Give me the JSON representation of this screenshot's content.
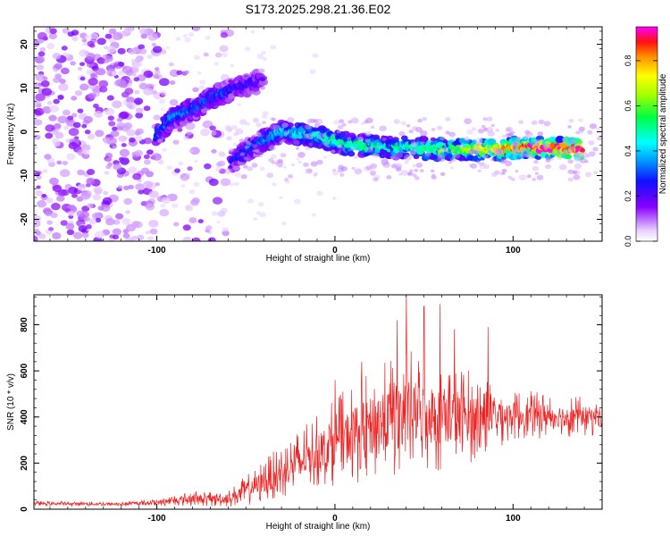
{
  "figure_title": "S173.2025.298.21.36.E02",
  "chart_data": [
    {
      "type": "heatmap",
      "title": "S173.2025.298.21.36.E02",
      "xlabel": "Height of straight line (km)",
      "ylabel": "Frequency (Hz)",
      "xlim": [
        -169,
        150
      ],
      "ylim": [
        -25,
        24
      ],
      "xticks": [
        -100,
        0,
        100
      ],
      "xtick_labels": [
        "-100",
        "0",
        "100"
      ],
      "yticks": [
        -20,
        -10,
        0,
        10,
        20
      ],
      "ytick_labels": [
        "-20",
        "-10",
        "0",
        "10",
        "20"
      ],
      "colorbar": {
        "label": "Normalized spectral amplitude",
        "range": [
          0,
          0.95
        ],
        "ticks": [
          0.0,
          0.2,
          0.4,
          0.6,
          0.8
        ],
        "tick_labels": [
          "0.0",
          "0.2",
          "0.4",
          "0.6",
          "0.8"
        ]
      },
      "ridge": {
        "description_points": [
          {
            "x": -100,
            "y": -1,
            "amp": 0.3
          },
          {
            "x": -92,
            "y": 3,
            "amp": 0.35
          },
          {
            "x": -80,
            "y": 5,
            "amp": 0.3
          },
          {
            "x": -68,
            "y": 8,
            "amp": 0.3
          },
          {
            "x": -55,
            "y": 10,
            "amp": 0.25
          },
          {
            "x": -40,
            "y": 12,
            "amp": 0.2
          },
          {
            "x": -58,
            "y": -7,
            "amp": 0.25
          },
          {
            "x": -45,
            "y": -3,
            "amp": 0.3
          },
          {
            "x": -30,
            "y": 0,
            "amp": 0.4
          },
          {
            "x": -10,
            "y": -1,
            "amp": 0.45
          },
          {
            "x": 10,
            "y": -3,
            "amp": 0.5
          },
          {
            "x": 30,
            "y": -3.5,
            "amp": 0.45
          },
          {
            "x": 60,
            "y": -4,
            "amp": 0.55
          },
          {
            "x": 90,
            "y": -4,
            "amp": 0.7
          },
          {
            "x": 110,
            "y": -3.5,
            "amp": 0.85
          },
          {
            "x": 140,
            "y": -4,
            "amp": 0.9
          }
        ]
      }
    },
    {
      "type": "line",
      "xlabel": "Height of straight line (km)",
      "ylabel": "SNR (10 * v/v)",
      "xlim": [
        -169,
        150
      ],
      "ylim": [
        0,
        930
      ],
      "xticks": [
        -100,
        0,
        100
      ],
      "xtick_labels": [
        "-100",
        "0",
        "100"
      ],
      "yticks": [
        0,
        200,
        400,
        600,
        800
      ],
      "ytick_labels": [
        "0",
        "200",
        "400",
        "600",
        "800"
      ],
      "series": [
        {
          "name": "SNR",
          "color": "#ee2222",
          "envelope": [
            {
              "x": -169,
              "mean": 25,
              "amp": 10
            },
            {
              "x": -120,
              "mean": 22,
              "amp": 10
            },
            {
              "x": -100,
              "mean": 30,
              "amp": 15
            },
            {
              "x": -80,
              "mean": 45,
              "amp": 35
            },
            {
              "x": -60,
              "mean": 45,
              "amp": 35
            },
            {
              "x": -45,
              "mean": 100,
              "amp": 80
            },
            {
              "x": -30,
              "mean": 160,
              "amp": 120
            },
            {
              "x": -10,
              "mean": 250,
              "amp": 160
            },
            {
              "x": 10,
              "mean": 330,
              "amp": 220
            },
            {
              "x": 40,
              "mean": 420,
              "amp": 280
            },
            {
              "x": 70,
              "mean": 400,
              "amp": 230
            },
            {
              "x": 100,
              "mean": 410,
              "amp": 110
            },
            {
              "x": 150,
              "mean": 400,
              "amp": 80
            }
          ],
          "peaks": [
            {
              "x": 40,
              "y": 930
            },
            {
              "x": 50,
              "y": 880
            },
            {
              "x": 59,
              "y": 890
            },
            {
              "x": 35,
              "y": 820
            },
            {
              "x": 67,
              "y": 780
            },
            {
              "x": 86,
              "y": 790
            },
            {
              "x": 15,
              "y": 640
            },
            {
              "x": 0,
              "y": 560
            }
          ]
        }
      ]
    }
  ]
}
